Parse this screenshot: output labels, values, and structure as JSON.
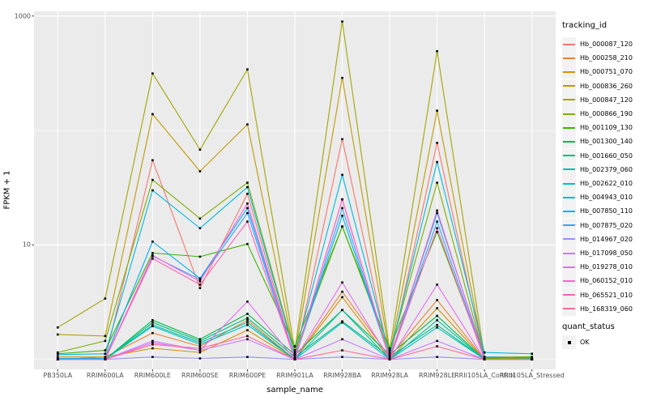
{
  "chart_data": {
    "type": "line",
    "title": "",
    "xlabel": "sample_name",
    "ylabel": "FPKM + 1",
    "y_scale": "log10",
    "y_ticks": [
      {
        "label": "1000",
        "value": 1000
      },
      {
        "label": "10",
        "value": 10
      }
    ],
    "y_minor_grid_values": [
      100,
      1
    ],
    "y_domain_log": [
      -0.087,
      3.041
    ],
    "panel_bg": "#EBEBEB",
    "grid_color": "#FFFFFF",
    "point_color": "#000000",
    "categories": [
      "PB350LA",
      "RRIM600LA",
      "RRIM600LE",
      "RRIM600SE",
      "RRIM600PE",
      "RRIM901LA",
      "RRIM928BA",
      "RRIM928LA",
      "RRIM928LE",
      "RRII105LA_Control",
      "RRII105LA_Stressed"
    ],
    "series": [
      {
        "name": "Hb_000087_120",
        "color": "#F8766D",
        "values": [
          1.0,
          1.0,
          55,
          4.2,
          28,
          1.0,
          84,
          1.0,
          78,
          1.0,
          1.0
        ]
      },
      {
        "name": "Hb_000258_210",
        "color": "#EA8331",
        "values": [
          1.0,
          1.05,
          1.7,
          1.3,
          2.2,
          1.0,
          3.9,
          1.05,
          3.3,
          1.0,
          1.0
        ]
      },
      {
        "name": "Hb_000751_070",
        "color": "#D89000",
        "values": [
          1.05,
          1.05,
          1.25,
          1.15,
          1.8,
          1.0,
          3.5,
          1.0,
          2.8,
          1.0,
          1.0
        ]
      },
      {
        "name": "Hb_000836_260",
        "color": "#C09B00",
        "values": [
          1.65,
          1.6,
          139,
          44,
          113,
          1.1,
          288,
          1.1,
          149,
          1.02,
          1.0
        ]
      },
      {
        "name": "Hb_000847_120",
        "color": "#A3A500",
        "values": [
          1.9,
          3.4,
          315,
          68,
          342,
          1.2,
          895,
          1.2,
          493,
          1.05,
          1.05
        ]
      },
      {
        "name": "Hb_000866_190",
        "color": "#7CAE00",
        "values": [
          1.15,
          1.45,
          37,
          17,
          35,
          1.15,
          14.5,
          1.15,
          35,
          1.02,
          1.02
        ]
      },
      {
        "name": "Hb_001109_130",
        "color": "#39B600",
        "values": [
          1.12,
          1.2,
          8.5,
          7.9,
          10.2,
          1.3,
          14.5,
          1.25,
          13,
          1.03,
          1.05
        ]
      },
      {
        "name": "Hb_001300_140",
        "color": "#00BB4E",
        "values": [
          1.0,
          1.0,
          2.2,
          1.5,
          2.5,
          1.1,
          2.7,
          1.1,
          2.4,
          1.0,
          1.0
        ]
      },
      {
        "name": "Hb_001660_050",
        "color": "#00BF7D",
        "values": [
          1.0,
          1.0,
          2.1,
          1.45,
          2.3,
          1.05,
          2.15,
          1.05,
          2.0,
          1.0,
          1.0
        ]
      },
      {
        "name": "Hb_002379_060",
        "color": "#00C1A3",
        "values": [
          1.0,
          1.0,
          2.0,
          1.4,
          2.1,
          1.0,
          2.7,
          1.0,
          2.2,
          1.0,
          1.0
        ]
      },
      {
        "name": "Hb_002622_010",
        "color": "#00BFC4",
        "values": [
          1.0,
          1.0,
          1.95,
          1.35,
          2.0,
          1.0,
          2.1,
          1.0,
          1.9,
          1.0,
          1.0
        ]
      },
      {
        "name": "Hb_004943_010",
        "color": "#00BAE0",
        "values": [
          1.1,
          1.12,
          30,
          14,
          32,
          1.1,
          41,
          1.1,
          53,
          1.15,
          1.12
        ]
      },
      {
        "name": "Hb_007850_110",
        "color": "#00B0F6",
        "values": [
          1.02,
          1.02,
          10.7,
          5.1,
          21,
          1.02,
          18,
          1.02,
          19,
          1.05,
          1.03
        ]
      },
      {
        "name": "Hb_007875_020",
        "color": "#35A2FF",
        "values": [
          1.0,
          1.0,
          8.0,
          5.0,
          19,
          1.0,
          21,
          1.0,
          16,
          1.0,
          1.0
        ]
      },
      {
        "name": "Hb_014967_020",
        "color": "#9590FF",
        "values": [
          1.0,
          1.0,
          1.05,
          1.02,
          1.05,
          1.0,
          1.05,
          1.0,
          1.05,
          1.0,
          1.0
        ]
      },
      {
        "name": "Hb_017098_050",
        "color": "#C77CFF",
        "values": [
          1.0,
          1.0,
          1.45,
          1.2,
          1.5,
          1.0,
          1.5,
          1.0,
          1.45,
          1.0,
          1.0
        ]
      },
      {
        "name": "Hb_019278_010",
        "color": "#E76BF3",
        "values": [
          1.0,
          1.0,
          1.4,
          1.2,
          3.2,
          1.0,
          4.7,
          1.0,
          4.5,
          1.0,
          1.0
        ]
      },
      {
        "name": "Hb_060152_010",
        "color": "#FA62DB",
        "values": [
          1.0,
          1.0,
          8.1,
          4.8,
          23,
          1.0,
          25,
          1.0,
          20,
          1.0,
          1.0
        ]
      },
      {
        "name": "Hb_065521_010",
        "color": "#FF62BC",
        "values": [
          1.0,
          1.0,
          7.6,
          4.5,
          16,
          1.0,
          25,
          1.0,
          14,
          1.0,
          1.0
        ]
      },
      {
        "name": "Hb_168319_060",
        "color": "#FF6A98",
        "values": [
          1.0,
          1.0,
          1.35,
          1.25,
          1.6,
          1.0,
          1.2,
          1.0,
          1.3,
          1.0,
          1.0
        ]
      }
    ]
  },
  "legend": {
    "tracking_title": "tracking_id",
    "quant_title": "quant_status",
    "quant_items": [
      {
        "label": "OK"
      }
    ],
    "key_bg": "#F2F2F2"
  }
}
